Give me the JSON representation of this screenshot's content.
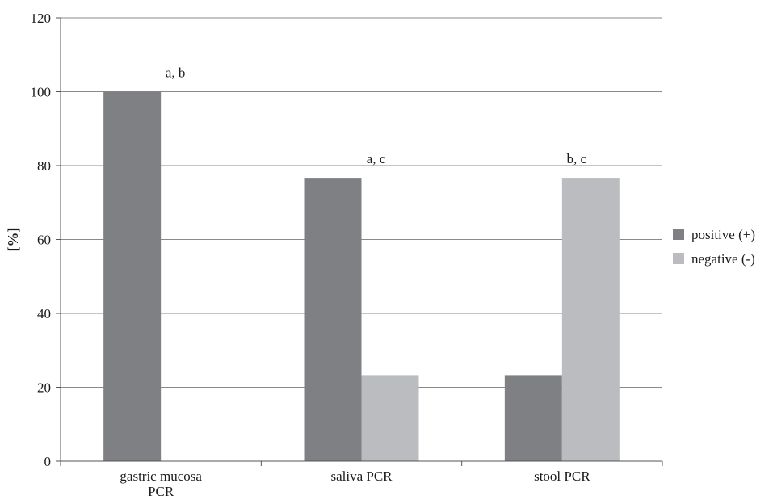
{
  "chart_data": {
    "type": "bar",
    "title": "",
    "xlabel": "",
    "ylabel": "[%]",
    "ylim": [
      0,
      120
    ],
    "yticks": [
      0,
      20,
      40,
      60,
      80,
      100,
      120
    ],
    "grid": true,
    "legend_position": "right",
    "categories": [
      [
        "gastric mucosa",
        "PCR"
      ],
      [
        "saliva PCR"
      ],
      [
        "stool PCR"
      ]
    ],
    "series": [
      {
        "name": "positive (+)",
        "color": "#7f8084",
        "values": [
          100,
          76.7,
          23.3
        ]
      },
      {
        "name": "negative (-)",
        "color": "#bbbcbf",
        "values": [
          0,
          23.3,
          76.7
        ]
      }
    ],
    "annotations": [
      "a, b",
      "a, c",
      "b,  c"
    ]
  }
}
